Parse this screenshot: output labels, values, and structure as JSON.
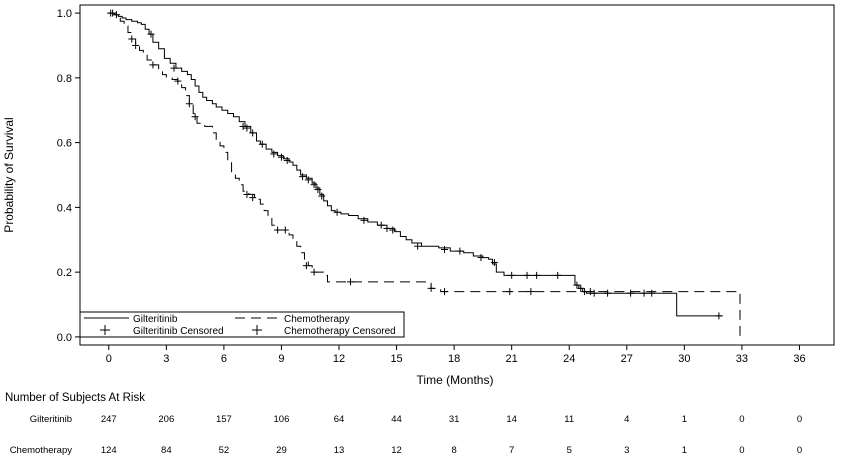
{
  "chart_data": {
    "type": "line",
    "title": "",
    "xlabel": "Time (Months)",
    "ylabel": "Probability of Survival",
    "xlim": [
      -1.5,
      37.8
    ],
    "ylim": [
      -0.025,
      1.025
    ],
    "xticks": [
      0,
      3,
      6,
      9,
      12,
      15,
      18,
      21,
      24,
      27,
      30,
      33,
      36
    ],
    "yticks": [
      0.0,
      0.2,
      0.4,
      0.6,
      0.8,
      1.0
    ],
    "ytick_labels": [
      "0.0",
      "0.2",
      "0.4",
      "0.6",
      "0.8",
      "1.0"
    ],
    "grid": false,
    "legend_position": "bottom-left",
    "series": [
      {
        "name": "Gilteritinib",
        "style": "solid",
        "color": "#000000",
        "steps": [
          [
            0,
            1.0
          ],
          [
            0.3,
            0.995
          ],
          [
            0.5,
            0.99
          ],
          [
            0.7,
            0.985
          ],
          [
            0.9,
            0.98
          ],
          [
            1.2,
            0.975
          ],
          [
            1.5,
            0.97
          ],
          [
            1.7,
            0.965
          ],
          [
            1.9,
            0.95
          ],
          [
            2.1,
            0.935
          ],
          [
            2.3,
            0.91
          ],
          [
            2.6,
            0.89
          ],
          [
            2.9,
            0.86
          ],
          [
            3.2,
            0.845
          ],
          [
            3.5,
            0.83
          ],
          [
            3.8,
            0.82
          ],
          [
            4.1,
            0.81
          ],
          [
            4.3,
            0.795
          ],
          [
            4.5,
            0.775
          ],
          [
            4.7,
            0.755
          ],
          [
            4.9,
            0.74
          ],
          [
            5.1,
            0.73
          ],
          [
            5.4,
            0.72
          ],
          [
            5.6,
            0.71
          ],
          [
            5.9,
            0.7
          ],
          [
            6.2,
            0.69
          ],
          [
            6.5,
            0.68
          ],
          [
            6.8,
            0.665
          ],
          [
            7.1,
            0.65
          ],
          [
            7.4,
            0.63
          ],
          [
            7.7,
            0.605
          ],
          [
            7.9,
            0.595
          ],
          [
            8.2,
            0.58
          ],
          [
            8.5,
            0.57
          ],
          [
            8.8,
            0.56
          ],
          [
            9.1,
            0.55
          ],
          [
            9.4,
            0.54
          ],
          [
            9.6,
            0.53
          ],
          [
            9.8,
            0.515
          ],
          [
            10.0,
            0.5
          ],
          [
            10.3,
            0.49
          ],
          [
            10.6,
            0.475
          ],
          [
            10.8,
            0.46
          ],
          [
            11.0,
            0.44
          ],
          [
            11.2,
            0.42
          ],
          [
            11.4,
            0.405
          ],
          [
            11.6,
            0.39
          ],
          [
            11.8,
            0.385
          ],
          [
            12.1,
            0.38
          ],
          [
            12.5,
            0.375
          ],
          [
            13.0,
            0.365
          ],
          [
            13.5,
            0.355
          ],
          [
            14.0,
            0.345
          ],
          [
            14.5,
            0.335
          ],
          [
            14.9,
            0.325
          ],
          [
            15.2,
            0.31
          ],
          [
            15.5,
            0.3
          ],
          [
            15.8,
            0.29
          ],
          [
            16.3,
            0.28
          ],
          [
            17.2,
            0.275
          ],
          [
            17.8,
            0.265
          ],
          [
            18.5,
            0.26
          ],
          [
            19.0,
            0.25
          ],
          [
            19.5,
            0.245
          ],
          [
            19.8,
            0.24
          ],
          [
            20.0,
            0.225
          ],
          [
            20.2,
            0.2
          ],
          [
            20.6,
            0.19
          ],
          [
            24.3,
            0.16
          ],
          [
            24.5,
            0.15
          ],
          [
            24.7,
            0.14
          ],
          [
            24.9,
            0.135
          ],
          [
            29.6,
            0.065
          ],
          [
            32.0,
            0.065
          ]
        ],
        "censored": [
          [
            0.2,
            1.0
          ],
          [
            0.4,
            0.995
          ],
          [
            2.2,
            0.935
          ],
          [
            3.4,
            0.83
          ],
          [
            7.0,
            0.65
          ],
          [
            7.2,
            0.645
          ],
          [
            7.5,
            0.63
          ],
          [
            8.0,
            0.595
          ],
          [
            8.6,
            0.565
          ],
          [
            9.0,
            0.555
          ],
          [
            9.3,
            0.545
          ],
          [
            10.1,
            0.495
          ],
          [
            10.4,
            0.485
          ],
          [
            10.7,
            0.47
          ],
          [
            10.9,
            0.455
          ],
          [
            11.1,
            0.435
          ],
          [
            11.9,
            0.385
          ],
          [
            13.3,
            0.36
          ],
          [
            14.2,
            0.345
          ],
          [
            14.5,
            0.335
          ],
          [
            14.8,
            0.33
          ],
          [
            16.1,
            0.28
          ],
          [
            17.5,
            0.27
          ],
          [
            18.3,
            0.265
          ],
          [
            19.4,
            0.245
          ],
          [
            20.1,
            0.23
          ],
          [
            21.0,
            0.19
          ],
          [
            21.8,
            0.19
          ],
          [
            22.3,
            0.19
          ],
          [
            23.4,
            0.19
          ],
          [
            24.4,
            0.16
          ],
          [
            24.6,
            0.15
          ],
          [
            24.8,
            0.14
          ],
          [
            25.3,
            0.135
          ],
          [
            26.0,
            0.135
          ],
          [
            27.2,
            0.135
          ],
          [
            27.9,
            0.135
          ],
          [
            28.3,
            0.135
          ],
          [
            31.8,
            0.065
          ]
        ]
      },
      {
        "name": "Chemotherapy",
        "style": "dashed",
        "color": "#000000",
        "steps": [
          [
            0,
            1.0
          ],
          [
            0.4,
            0.99
          ],
          [
            0.6,
            0.975
          ],
          [
            0.8,
            0.96
          ],
          [
            1.0,
            0.94
          ],
          [
            1.2,
            0.92
          ],
          [
            1.4,
            0.9
          ],
          [
            1.6,
            0.885
          ],
          [
            1.8,
            0.87
          ],
          [
            2.0,
            0.855
          ],
          [
            2.3,
            0.84
          ],
          [
            2.6,
            0.825
          ],
          [
            2.8,
            0.81
          ],
          [
            3.0,
            0.8
          ],
          [
            3.3,
            0.795
          ],
          [
            3.6,
            0.785
          ],
          [
            3.8,
            0.77
          ],
          [
            4.0,
            0.745
          ],
          [
            4.2,
            0.72
          ],
          [
            4.4,
            0.69
          ],
          [
            4.6,
            0.66
          ],
          [
            5.0,
            0.65
          ],
          [
            5.4,
            0.63
          ],
          [
            5.6,
            0.61
          ],
          [
            5.8,
            0.59
          ],
          [
            6.0,
            0.57
          ],
          [
            6.2,
            0.54
          ],
          [
            6.4,
            0.51
          ],
          [
            6.6,
            0.49
          ],
          [
            6.8,
            0.47
          ],
          [
            7.0,
            0.45
          ],
          [
            7.3,
            0.44
          ],
          [
            7.6,
            0.425
          ],
          [
            7.9,
            0.41
          ],
          [
            8.1,
            0.39
          ],
          [
            8.3,
            0.37
          ],
          [
            8.5,
            0.345
          ],
          [
            8.7,
            0.33
          ],
          [
            9.4,
            0.315
          ],
          [
            9.6,
            0.3
          ],
          [
            9.8,
            0.28
          ],
          [
            10.0,
            0.26
          ],
          [
            10.2,
            0.24
          ],
          [
            10.4,
            0.22
          ],
          [
            10.6,
            0.2
          ],
          [
            11.2,
            0.19
          ],
          [
            11.4,
            0.17
          ],
          [
            16.8,
            0.15
          ],
          [
            17.3,
            0.14
          ],
          [
            32.9,
            0.14
          ],
          [
            32.9,
            0.0
          ]
        ],
        "censored": [
          [
            0.1,
            1.0
          ],
          [
            1.2,
            0.92
          ],
          [
            1.4,
            0.9
          ],
          [
            2.3,
            0.84
          ],
          [
            3.6,
            0.79
          ],
          [
            4.2,
            0.72
          ],
          [
            4.5,
            0.68
          ],
          [
            7.2,
            0.44
          ],
          [
            7.5,
            0.43
          ],
          [
            8.8,
            0.33
          ],
          [
            9.2,
            0.33
          ],
          [
            10.3,
            0.22
          ],
          [
            10.7,
            0.2
          ],
          [
            12.6,
            0.17
          ],
          [
            16.8,
            0.15
          ],
          [
            17.5,
            0.14
          ],
          [
            20.9,
            0.14
          ],
          [
            22.0,
            0.14
          ],
          [
            25.1,
            0.14
          ]
        ]
      }
    ],
    "legend": [
      {
        "label": "Gilteritinib",
        "symbol": "solid-line"
      },
      {
        "label": "Chemotherapy",
        "symbol": "dashed-line"
      },
      {
        "label": "Gilteritinib Censored",
        "symbol": "plus"
      },
      {
        "label": "Chemotherapy Censored",
        "symbol": "plus"
      }
    ],
    "at_risk": {
      "title": "Number of Subjects At Risk",
      "times": [
        0,
        3,
        6,
        9,
        12,
        15,
        18,
        21,
        24,
        27,
        30,
        33,
        36
      ],
      "rows": [
        {
          "label": "Gilteritinib",
          "counts": [
            "247",
            "206",
            "157",
            "106",
            "64",
            "44",
            "31",
            "14",
            "11",
            "4",
            "1",
            "0",
            "0"
          ]
        },
        {
          "label": "Chemotherapy",
          "counts": [
            "124",
            "84",
            "52",
            "29",
            "13",
            "12",
            "8",
            "7",
            "5",
            "3",
            "1",
            "0",
            "0"
          ]
        }
      ]
    }
  }
}
